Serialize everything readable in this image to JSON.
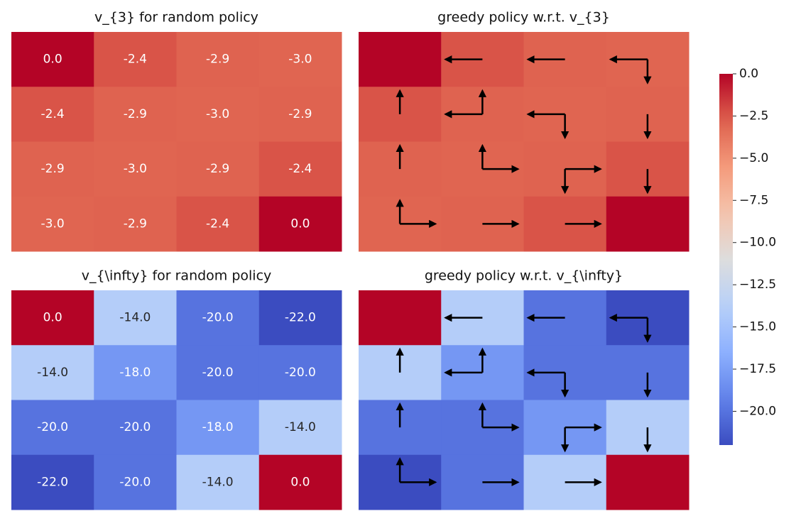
{
  "chart_data": [
    {
      "type": "heatmap",
      "title": "v_{3} for random policy",
      "colormap": "coolwarm",
      "clim": [
        -22,
        0
      ],
      "values": [
        [
          0,
          -2.4,
          -2.9,
          -3.0
        ],
        [
          -2.4,
          -2.9,
          -3.0,
          -2.9
        ],
        [
          -2.9,
          -3.0,
          -2.9,
          -2.4
        ],
        [
          -3.0,
          -2.9,
          -2.4,
          0
        ]
      ],
      "value_labels": [
        [
          "0.0",
          "-2.4",
          "-2.9",
          "-3.0"
        ],
        [
          "-2.4",
          "-2.9",
          "-3.0",
          "-2.9"
        ],
        [
          "-2.9",
          "-3.0",
          "-2.9",
          "-2.4"
        ],
        [
          "-3.0",
          "-2.9",
          "-2.4",
          "0.0"
        ]
      ]
    },
    {
      "type": "policy",
      "title": "greedy policy w.r.t. v_{3}",
      "colormap": "coolwarm",
      "clim": [
        -22,
        0
      ],
      "values": [
        [
          0,
          -2.4,
          -2.9,
          -3.0
        ],
        [
          -2.4,
          -2.9,
          -3.0,
          -2.9
        ],
        [
          -2.9,
          -3.0,
          -2.9,
          -2.4
        ],
        [
          -3.0,
          -2.9,
          -2.4,
          0
        ]
      ],
      "policy": [
        [
          null,
          [
            "left"
          ],
          [
            "left"
          ],
          [
            "left",
            "down"
          ]
        ],
        [
          [
            "up"
          ],
          [
            "up",
            "left"
          ],
          [
            "left",
            "down"
          ],
          [
            "down"
          ]
        ],
        [
          [
            "up"
          ],
          [
            "up",
            "right"
          ],
          [
            "down",
            "right"
          ],
          [
            "down"
          ]
        ],
        [
          [
            "up",
            "right"
          ],
          [
            "right"
          ],
          [
            "right"
          ],
          null
        ]
      ]
    },
    {
      "type": "heatmap",
      "title": "v_{\\infty} for random policy",
      "colormap": "coolwarm",
      "clim": [
        -22,
        0
      ],
      "values": [
        [
          0,
          -14,
          -20,
          -22
        ],
        [
          -14,
          -18,
          -20,
          -20
        ],
        [
          -20,
          -20,
          -18,
          -14
        ],
        [
          -22,
          -20,
          -14,
          0
        ]
      ],
      "value_labels": [
        [
          "0.0",
          "-14.0",
          "-20.0",
          "-22.0"
        ],
        [
          "-14.0",
          "-18.0",
          "-20.0",
          "-20.0"
        ],
        [
          "-20.0",
          "-20.0",
          "-18.0",
          "-14.0"
        ],
        [
          "-22.0",
          "-20.0",
          "-14.0",
          "0.0"
        ]
      ]
    },
    {
      "type": "policy",
      "title": "greedy policy w.r.t. v_{\\infty}",
      "colormap": "coolwarm",
      "clim": [
        -22,
        0
      ],
      "values": [
        [
          0,
          -14,
          -20,
          -22
        ],
        [
          -14,
          -18,
          -20,
          -20
        ],
        [
          -20,
          -20,
          -18,
          -14
        ],
        [
          -22,
          -20,
          -14,
          0
        ]
      ],
      "policy": [
        [
          null,
          [
            "left"
          ],
          [
            "left"
          ],
          [
            "left",
            "down"
          ]
        ],
        [
          [
            "up"
          ],
          [
            "up",
            "left"
          ],
          [
            "left",
            "down"
          ],
          [
            "down"
          ]
        ],
        [
          [
            "up"
          ],
          [
            "up",
            "right"
          ],
          [
            "down",
            "right"
          ],
          [
            "down"
          ]
        ],
        [
          [
            "up",
            "right"
          ],
          [
            "right"
          ],
          [
            "right"
          ],
          null
        ]
      ]
    },
    {
      "type": "colorbar",
      "colormap": "coolwarm",
      "ylim": [
        -22,
        0
      ],
      "yticks": [
        {
          "value": 0,
          "label": "0.0"
        },
        {
          "value": -2.5,
          "label": "−2.5"
        },
        {
          "value": -5,
          "label": "−5.0"
        },
        {
          "value": -7.5,
          "label": "−7.5"
        },
        {
          "value": -10,
          "label": "−10.0"
        },
        {
          "value": -12.5,
          "label": "−12.5"
        },
        {
          "value": -15,
          "label": "−15.0"
        },
        {
          "value": -17.5,
          "label": "−17.5"
        },
        {
          "value": -20,
          "label": "−20.0"
        }
      ]
    }
  ]
}
